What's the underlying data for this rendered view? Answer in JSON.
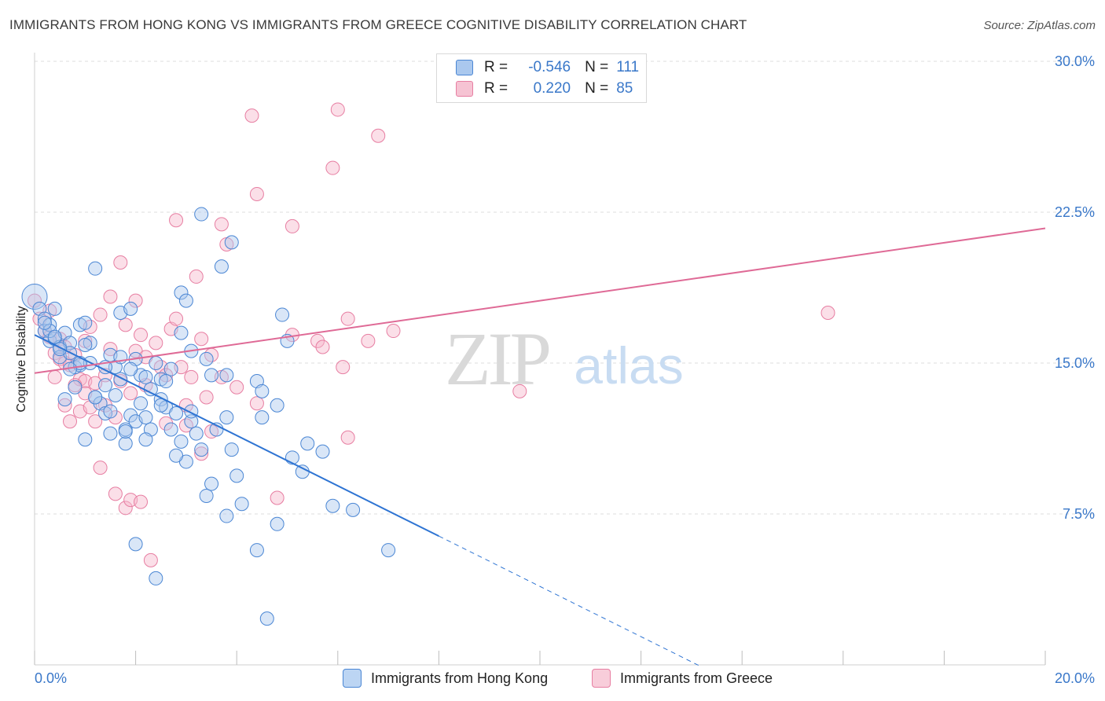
{
  "title": "IMMIGRANTS FROM HONG KONG VS IMMIGRANTS FROM GREECE COGNITIVE DISABILITY CORRELATION CHART",
  "source": "Source: ZipAtlas.com",
  "watermark_zip": "ZIP",
  "watermark_atlas": "atlas",
  "legend_top": {
    "rows": [
      {
        "r_label": "R =",
        "r_value": "-0.546",
        "n_label": "N =",
        "n_value": "111"
      },
      {
        "r_label": "R =",
        "r_value": "0.220",
        "n_label": "N =",
        "n_value": "85"
      }
    ]
  },
  "legend_bottom": {
    "items": [
      {
        "label": "Immigrants from Hong Kong"
      },
      {
        "label": "Immigrants from Greece"
      }
    ]
  },
  "colors": {
    "blue_fill": "#aac8ee",
    "blue_stroke": "#4a86d4",
    "blue_line": "#2e74d3",
    "pink_fill": "#f6b9cc",
    "pink_stroke": "#e77ea2",
    "pink_line": "#df6a96",
    "grid": "#dcdcdc",
    "axis_text": "#3a78c9"
  },
  "chart_data": {
    "type": "scatter",
    "title": "IMMIGRANTS FROM HONG KONG VS IMMIGRANTS FROM GREECE COGNITIVE DISABILITY CORRELATION CHART",
    "xlabel": "",
    "ylabel": "Cognitive Disability",
    "xlim": [
      0,
      20
    ],
    "ylim": [
      0,
      30
    ],
    "x_tick_labels": [
      "0.0%",
      "20.0%"
    ],
    "y_ticks": [
      7.5,
      15.0,
      22.5,
      30.0
    ],
    "y_tick_labels": [
      "7.5%",
      "15.0%",
      "22.5%",
      "30.0%"
    ],
    "grid": true,
    "legend_position": "top-center",
    "series": [
      {
        "name": "Immigrants from Hong Kong",
        "R": -0.546,
        "N": 111,
        "trend": {
          "x0": 0.0,
          "y0": 16.4,
          "x1": 8.0,
          "y1": 6.4,
          "dashed_to_x": 13.2
        },
        "points": [
          [
            0.0,
            18.3
          ],
          [
            0.1,
            17.7
          ],
          [
            0.2,
            17.2
          ],
          [
            0.2,
            16.6
          ],
          [
            0.3,
            16.9
          ],
          [
            0.3,
            16.1
          ],
          [
            0.4,
            17.7
          ],
          [
            0.4,
            16.2
          ],
          [
            0.5,
            15.8
          ],
          [
            0.5,
            15.3
          ],
          [
            0.6,
            16.5
          ],
          [
            0.7,
            16.0
          ],
          [
            0.7,
            15.5
          ],
          [
            0.8,
            14.8
          ],
          [
            0.8,
            13.8
          ],
          [
            0.9,
            16.9
          ],
          [
            0.9,
            14.9
          ],
          [
            1.0,
            17.0
          ],
          [
            1.0,
            11.2
          ],
          [
            1.1,
            16.0
          ],
          [
            1.1,
            15.0
          ],
          [
            1.2,
            19.7
          ],
          [
            1.2,
            13.3
          ],
          [
            1.3,
            13.0
          ],
          [
            1.4,
            12.5
          ],
          [
            1.4,
            13.9
          ],
          [
            1.5,
            15.4
          ],
          [
            1.5,
            12.6
          ],
          [
            1.6,
            14.8
          ],
          [
            1.6,
            13.4
          ],
          [
            1.7,
            14.2
          ],
          [
            1.7,
            17.5
          ],
          [
            1.8,
            11.7
          ],
          [
            1.8,
            11.0
          ],
          [
            1.9,
            12.4
          ],
          [
            1.9,
            17.7
          ],
          [
            2.0,
            12.1
          ],
          [
            2.0,
            15.2
          ],
          [
            2.1,
            14.4
          ],
          [
            2.1,
            13.0
          ],
          [
            2.2,
            12.3
          ],
          [
            2.2,
            14.3
          ],
          [
            2.3,
            11.7
          ],
          [
            2.4,
            15.0
          ],
          [
            2.5,
            13.2
          ],
          [
            2.5,
            14.2
          ],
          [
            2.6,
            12.8
          ],
          [
            2.7,
            11.7
          ],
          [
            2.8,
            12.5
          ],
          [
            2.9,
            16.5
          ],
          [
            2.9,
            18.5
          ],
          [
            3.0,
            18.1
          ],
          [
            3.1,
            15.6
          ],
          [
            3.1,
            12.1
          ],
          [
            3.2,
            11.5
          ],
          [
            3.3,
            10.7
          ],
          [
            3.4,
            15.2
          ],
          [
            3.4,
            8.4
          ],
          [
            3.5,
            14.4
          ],
          [
            3.6,
            11.7
          ],
          [
            3.7,
            19.8
          ],
          [
            3.8,
            14.4
          ],
          [
            3.8,
            12.3
          ],
          [
            3.9,
            10.7
          ],
          [
            4.0,
            9.4
          ],
          [
            4.1,
            8.0
          ],
          [
            4.4,
            14.1
          ],
          [
            4.5,
            13.6
          ],
          [
            4.5,
            12.3
          ],
          [
            4.8,
            12.9
          ],
          [
            4.9,
            17.4
          ],
          [
            5.0,
            16.1
          ],
          [
            5.1,
            10.3
          ],
          [
            5.3,
            9.6
          ],
          [
            5.4,
            11.0
          ],
          [
            5.7,
            10.6
          ],
          [
            5.9,
            7.9
          ],
          [
            6.3,
            7.7
          ],
          [
            7.0,
            5.7
          ],
          [
            1.8,
            11.6
          ],
          [
            1.4,
            14.8
          ],
          [
            0.6,
            13.2
          ],
          [
            2.3,
            13.7
          ],
          [
            0.3,
            16.6
          ],
          [
            1.0,
            15.9
          ],
          [
            2.7,
            14.7
          ],
          [
            3.0,
            10.1
          ],
          [
            2.0,
            6.0
          ],
          [
            2.4,
            4.3
          ],
          [
            4.4,
            5.7
          ],
          [
            4.6,
            2.3
          ],
          [
            4.8,
            7.0
          ],
          [
            3.5,
            9.0
          ],
          [
            2.9,
            11.1
          ],
          [
            3.8,
            7.4
          ],
          [
            0.9,
            15.0
          ],
          [
            1.7,
            15.3
          ],
          [
            2.6,
            14.1
          ],
          [
            0.5,
            15.7
          ],
          [
            1.2,
            13.3
          ],
          [
            0.2,
            17.0
          ],
          [
            3.1,
            12.6
          ],
          [
            2.2,
            11.2
          ],
          [
            1.5,
            11.5
          ],
          [
            2.8,
            10.4
          ],
          [
            3.3,
            22.4
          ],
          [
            3.9,
            21.0
          ],
          [
            2.5,
            12.9
          ],
          [
            1.9,
            14.7
          ],
          [
            0.4,
            16.3
          ],
          [
            0.7,
            14.7
          ]
        ]
      },
      {
        "name": "Immigrants from Greece",
        "R": 0.22,
        "N": 85,
        "trend": {
          "x0": 0.0,
          "y0": 14.5,
          "x1": 20.0,
          "y1": 21.7
        },
        "points": [
          [
            0.0,
            18.1
          ],
          [
            0.1,
            17.2
          ],
          [
            0.2,
            16.6
          ],
          [
            0.3,
            16.3
          ],
          [
            0.3,
            17.6
          ],
          [
            0.4,
            15.5
          ],
          [
            0.4,
            14.3
          ],
          [
            0.5,
            15.2
          ],
          [
            0.5,
            16.2
          ],
          [
            0.6,
            15.0
          ],
          [
            0.6,
            12.9
          ],
          [
            0.7,
            12.1
          ],
          [
            0.7,
            14.9
          ],
          [
            0.8,
            15.4
          ],
          [
            0.9,
            14.2
          ],
          [
            0.9,
            12.6
          ],
          [
            1.0,
            14.1
          ],
          [
            1.0,
            13.5
          ],
          [
            1.1,
            16.8
          ],
          [
            1.1,
            12.8
          ],
          [
            1.2,
            14.0
          ],
          [
            1.3,
            17.4
          ],
          [
            1.3,
            9.8
          ],
          [
            1.4,
            12.9
          ],
          [
            1.4,
            14.4
          ],
          [
            1.5,
            18.3
          ],
          [
            1.5,
            15.7
          ],
          [
            1.6,
            12.3
          ],
          [
            1.6,
            8.5
          ],
          [
            1.7,
            20.0
          ],
          [
            1.7,
            14.1
          ],
          [
            1.8,
            16.9
          ],
          [
            1.8,
            7.8
          ],
          [
            1.9,
            13.5
          ],
          [
            1.9,
            8.2
          ],
          [
            2.0,
            18.1
          ],
          [
            2.0,
            15.6
          ],
          [
            2.1,
            16.4
          ],
          [
            2.2,
            13.9
          ],
          [
            2.2,
            15.3
          ],
          [
            2.3,
            5.2
          ],
          [
            2.4,
            16.0
          ],
          [
            2.5,
            14.8
          ],
          [
            2.6,
            14.4
          ],
          [
            2.6,
            12.0
          ],
          [
            2.7,
            16.7
          ],
          [
            2.8,
            22.1
          ],
          [
            2.8,
            17.2
          ],
          [
            2.9,
            14.8
          ],
          [
            3.0,
            11.9
          ],
          [
            3.0,
            12.9
          ],
          [
            3.1,
            14.3
          ],
          [
            3.2,
            19.3
          ],
          [
            3.3,
            10.5
          ],
          [
            3.3,
            16.2
          ],
          [
            3.5,
            11.6
          ],
          [
            3.5,
            15.4
          ],
          [
            3.7,
            14.3
          ],
          [
            3.7,
            21.9
          ],
          [
            3.8,
            20.9
          ],
          [
            4.0,
            13.8
          ],
          [
            4.4,
            23.4
          ],
          [
            4.4,
            13.0
          ],
          [
            4.3,
            27.3
          ],
          [
            4.8,
            8.3
          ],
          [
            5.1,
            21.8
          ],
          [
            5.1,
            16.4
          ],
          [
            5.6,
            16.1
          ],
          [
            5.7,
            15.8
          ],
          [
            5.9,
            24.7
          ],
          [
            6.0,
            27.6
          ],
          [
            6.1,
            14.8
          ],
          [
            6.2,
            17.2
          ],
          [
            6.2,
            11.3
          ],
          [
            6.6,
            16.1
          ],
          [
            6.8,
            26.3
          ],
          [
            7.1,
            16.6
          ],
          [
            9.6,
            13.6
          ],
          [
            15.7,
            17.5
          ],
          [
            0.8,
            13.9
          ],
          [
            1.2,
            12.1
          ],
          [
            1.0,
            16.1
          ],
          [
            0.6,
            15.8
          ],
          [
            2.1,
            8.1
          ],
          [
            3.4,
            13.3
          ]
        ]
      }
    ]
  }
}
